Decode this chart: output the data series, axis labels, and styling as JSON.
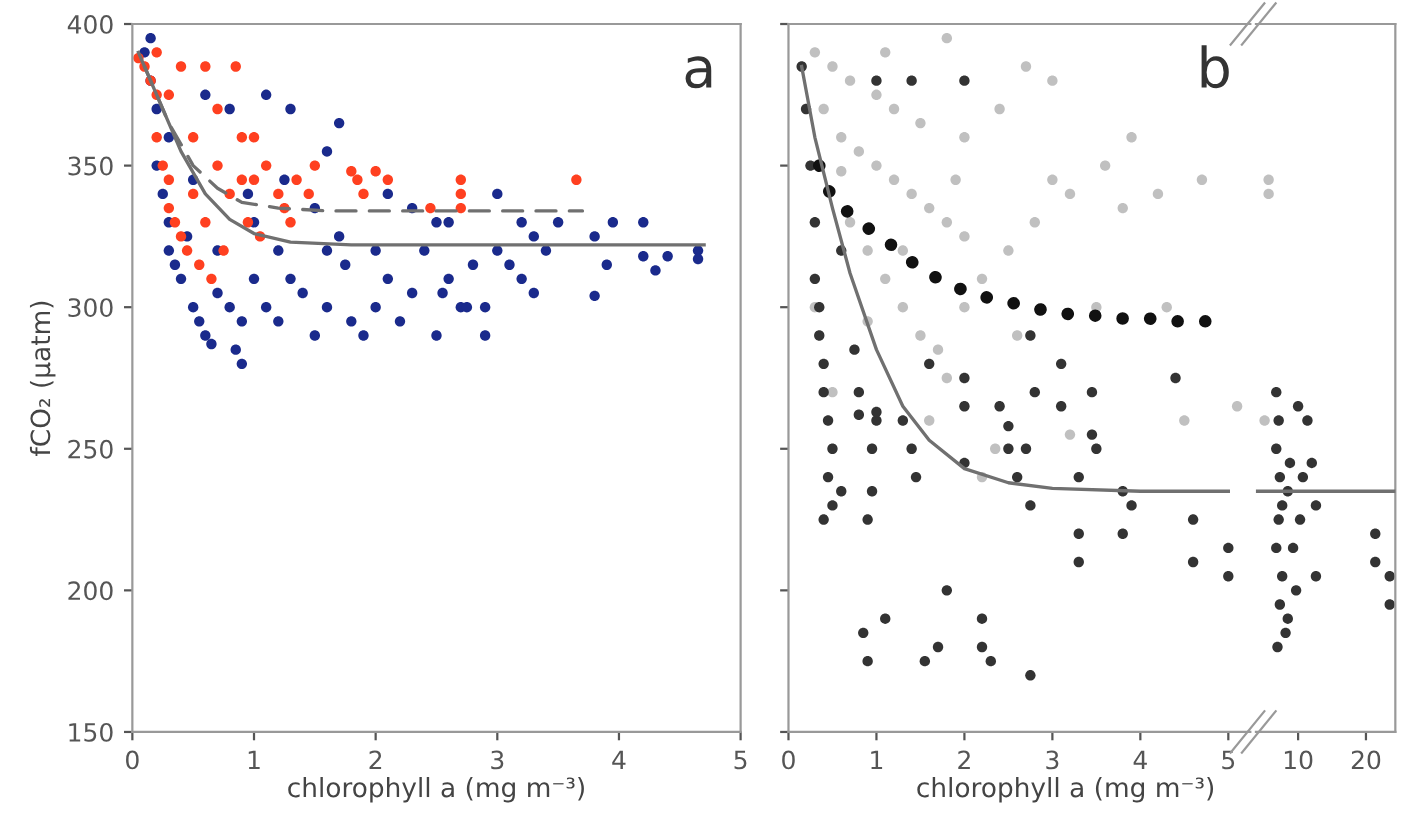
{
  "chart_data": [
    {
      "type": "scatter",
      "ylabel": "fCO₂ (µatm)",
      "xlabel": "chlorophyll a (mg m⁻³)",
      "annotations": [
        "a"
      ],
      "xlim": [
        0,
        5
      ],
      "xticks": [
        0,
        1,
        2,
        3,
        4,
        5
      ],
      "ylim": [
        150,
        400
      ],
      "yticks": [
        150,
        200,
        250,
        300,
        350,
        400
      ],
      "grid": false,
      "legend": false,
      "marker": "circle",
      "series": [
        {
          "color": "#1a2a8c",
          "x": [
            0.1,
            0.15,
            0.2,
            0.2,
            0.25,
            0.3,
            0.3,
            0.35,
            0.4,
            0.45,
            0.5,
            0.55,
            0.6,
            0.65,
            0.7,
            0.8,
            0.85,
            0.9,
            0.9,
            1.0,
            1.0,
            1.1,
            1.2,
            1.2,
            1.3,
            1.4,
            1.5,
            1.5,
            1.6,
            1.7,
            1.7,
            1.75,
            1.8,
            1.9,
            2.0,
            2.0,
            2.1,
            2.2,
            2.3,
            2.4,
            2.5,
            2.5,
            2.6,
            2.7,
            2.8,
            2.9,
            2.9,
            3.0,
            3.0,
            3.1,
            3.2,
            3.2,
            3.3,
            3.4,
            3.5,
            3.8,
            3.8,
            3.9,
            3.95,
            4.2,
            4.2,
            4.3,
            4.4,
            4.65,
            4.65,
            0.8,
            1.1,
            1.3,
            0.6,
            1.6,
            2.1,
            2.3,
            1.25,
            0.95,
            0.5,
            0.3,
            0.15,
            0.7,
            1.6,
            2.55,
            3.3,
            2.75,
            2.6
          ],
          "values": [
            390,
            380,
            370,
            350,
            340,
            330,
            320,
            315,
            310,
            325,
            300,
            295,
            290,
            287,
            305,
            300,
            285,
            280,
            295,
            310,
            330,
            300,
            295,
            320,
            310,
            305,
            290,
            335,
            300,
            325,
            365,
            315,
            295,
            290,
            300,
            320,
            310,
            295,
            305,
            320,
            290,
            330,
            310,
            300,
            315,
            290,
            300,
            340,
            320,
            315,
            330,
            310,
            305,
            320,
            330,
            304,
            325,
            315,
            330,
            330,
            318,
            313,
            318,
            320,
            317,
            370,
            375,
            370,
            375,
            355,
            340,
            335,
            345,
            340,
            345,
            360,
            395,
            320,
            320,
            305,
            325,
            300,
            330
          ]
        },
        {
          "color": "#ff4020",
          "x": [
            0.05,
            0.1,
            0.15,
            0.2,
            0.2,
            0.25,
            0.3,
            0.3,
            0.35,
            0.4,
            0.45,
            0.5,
            0.55,
            0.6,
            0.6,
            0.65,
            0.7,
            0.75,
            0.8,
            0.85,
            0.9,
            0.95,
            1.0,
            1.0,
            1.05,
            1.1,
            1.2,
            1.25,
            1.3,
            1.35,
            1.45,
            1.5,
            1.8,
            1.85,
            1.9,
            2.0,
            2.1,
            2.45,
            2.7,
            2.7,
            2.7,
            3.65,
            0.4,
            0.5,
            0.3,
            0.7,
            0.9,
            0.2
          ],
          "values": [
            388,
            385,
            380,
            375,
            360,
            350,
            345,
            335,
            330,
            325,
            320,
            340,
            315,
            330,
            385,
            310,
            350,
            320,
            340,
            385,
            360,
            330,
            345,
            360,
            325,
            350,
            340,
            335,
            330,
            345,
            340,
            350,
            348,
            345,
            340,
            348,
            345,
            335,
            345,
            340,
            335,
            345,
            385,
            360,
            375,
            370,
            345,
            390
          ]
        },
        {
          "type": "line",
          "marker": "none",
          "color": "#707070",
          "line_style": "solid",
          "x": [
            0.05,
            0.2,
            0.4,
            0.6,
            0.8,
            1.0,
            1.3,
            1.8,
            4.7
          ],
          "values": [
            390,
            375,
            355,
            340,
            331,
            326,
            323,
            322,
            322
          ]
        },
        {
          "type": "line",
          "marker": "none",
          "color": "#707070",
          "line_style": "dashed",
          "x": [
            0.1,
            0.3,
            0.5,
            0.7,
            0.9,
            1.2,
            1.6,
            2.5,
            3.7
          ],
          "values": [
            385,
            365,
            350,
            342,
            337,
            335,
            334,
            334,
            334
          ]
        }
      ]
    },
    {
      "type": "scatter",
      "xlabel": "chlorophyll a (mg m⁻³)",
      "annotations": [
        "b"
      ],
      "xlim": [
        0,
        5.25
      ],
      "xticks": [
        0,
        1,
        2,
        3,
        4,
        5
      ],
      "ylim": [
        150,
        400
      ],
      "yticks": [
        150,
        200,
        250,
        300,
        350,
        400
      ],
      "tick_labels": "x",
      "grid": false,
      "legend": false,
      "marker": "circle",
      "series": [
        {
          "color": "#c0c0c0",
          "x": [
            0.3,
            0.5,
            0.7,
            1.0,
            1.2,
            1.5,
            0.4,
            0.6,
            0.8,
            1.0,
            1.2,
            1.4,
            1.6,
            1.8,
            2.0,
            0.6,
            0.7,
            0.9,
            1.1,
            1.3,
            1.5,
            1.7,
            2.0,
            2.2,
            2.5,
            2.8,
            3.0,
            3.2,
            3.6,
            3.8,
            4.2,
            4.7,
            2.0,
            2.4,
            2.7,
            3.0,
            1.8,
            1.1,
            1.6,
            2.2,
            2.35,
            3.2,
            4.5,
            5.1,
            0.3,
            0.5,
            1.8,
            2.6,
            3.5,
            1.3,
            1.9,
            0.9,
            3.9,
            4.3
          ],
          "values": [
            390,
            385,
            380,
            375,
            370,
            365,
            370,
            360,
            355,
            350,
            345,
            340,
            335,
            330,
            325,
            348,
            330,
            320,
            310,
            300,
            290,
            285,
            300,
            310,
            320,
            330,
            345,
            340,
            350,
            335,
            340,
            345,
            360,
            370,
            385,
            380,
            395,
            390,
            260,
            240,
            250,
            255,
            260,
            265,
            300,
            270,
            275,
            290,
            300,
            320,
            345,
            295,
            360,
            300
          ]
        },
        {
          "color": "#333333",
          "x": [
            0.15,
            0.2,
            0.25,
            0.3,
            0.3,
            0.35,
            0.35,
            0.4,
            0.4,
            0.45,
            0.5,
            0.45,
            0.4,
            0.5,
            0.6,
            0.75,
            0.8,
            0.8,
            0.95,
            0.95,
            0.9,
            1.0,
            0.85,
            0.9,
            1.1,
            1.0,
            1.3,
            1.4,
            1.45,
            1.6,
            1.55,
            1.7,
            1.8,
            2.0,
            2.0,
            2.0,
            2.2,
            2.2,
            2.3,
            2.4,
            2.5,
            2.6,
            2.7,
            2.75,
            2.75,
            2.75,
            2.8,
            3.1,
            3.1,
            3.3,
            3.3,
            3.45,
            3.45,
            3.5,
            3.8,
            3.8,
            3.9,
            4.4,
            4.6,
            4.6,
            5.0,
            5.0,
            1.0,
            1.4,
            2.0,
            2.5,
            0.6,
            3.3
          ],
          "values": [
            385,
            370,
            350,
            330,
            310,
            300,
            290,
            280,
            270,
            260,
            250,
            240,
            225,
            230,
            235,
            285,
            270,
            262,
            250,
            235,
            225,
            260,
            185,
            175,
            190,
            263,
            260,
            250,
            240,
            280,
            175,
            180,
            200,
            265,
            245,
            275,
            180,
            190,
            175,
            265,
            250,
            240,
            250,
            230,
            170,
            290,
            270,
            280,
            265,
            240,
            220,
            270,
            255,
            250,
            220,
            235,
            230,
            275,
            225,
            210,
            205,
            215,
            380,
            380,
            380,
            258,
            320,
            210
          ]
        },
        {
          "type": "line",
          "marker": "none",
          "color": "#111111",
          "line_style": "dotted",
          "x": [
            0.35,
            0.5,
            0.7,
            0.9,
            1.1,
            1.3,
            1.5,
            1.7,
            1.9,
            2.1,
            2.3,
            2.5,
            2.7,
            2.9,
            3.1,
            3.3,
            3.5,
            3.7,
            3.9,
            4.1,
            4.3,
            4.5,
            4.7,
            4.85
          ],
          "values": [
            350,
            338,
            333,
            328,
            324,
            318,
            314,
            310,
            307,
            305,
            303,
            302,
            300,
            299,
            298,
            297,
            297,
            296,
            296,
            296,
            295,
            295,
            295,
            295
          ]
        },
        {
          "type": "line",
          "marker": "none",
          "color": "#707070",
          "line_style": "solid",
          "x": [
            0.15,
            0.3,
            0.5,
            0.7,
            1.0,
            1.3,
            1.6,
            2.0,
            2.5,
            3.0,
            4.0,
            5.0
          ],
          "values": [
            385,
            360,
            335,
            312,
            285,
            265,
            253,
            243,
            238,
            236,
            235,
            235
          ]
        }
      ]
    },
    {
      "type": "scatter",
      "log": "x",
      "xlim": [
        6.5,
        27
      ],
      "xticks": [
        10,
        20
      ],
      "ylim": [
        150,
        400
      ],
      "yticks": [
        150,
        200,
        250,
        300,
        350,
        400
      ],
      "tick_labels": "x",
      "grid": false,
      "legend": false,
      "marker": "circle",
      "series": [
        {
          "color": "#c0c0c0",
          "x": [
            7.4,
            7.4,
            7.1
          ],
          "values": [
            345,
            340,
            260
          ]
        },
        {
          "color": "#333333",
          "x": [
            8,
            8.2,
            8,
            8.3,
            8.5,
            8.2,
            8,
            8.5,
            8.3,
            8.1,
            9,
            9.2,
            9.5,
            9.8,
            10.2,
            10,
            11,
            11.5,
            12,
            12,
            10.5,
            22,
            22,
            25.5,
            25.5,
            9,
            8.8
          ],
          "values": [
            270,
            260,
            250,
            240,
            230,
            225,
            215,
            205,
            195,
            180,
            235,
            245,
            215,
            200,
            225,
            265,
            260,
            245,
            230,
            205,
            240,
            220,
            210,
            205,
            195,
            190,
            185
          ]
        },
        {
          "type": "line",
          "marker": "none",
          "color": "#707070",
          "line_style": "solid",
          "x": [
            6.5,
            27
          ],
          "values": [
            235,
            235
          ]
        }
      ]
    }
  ]
}
